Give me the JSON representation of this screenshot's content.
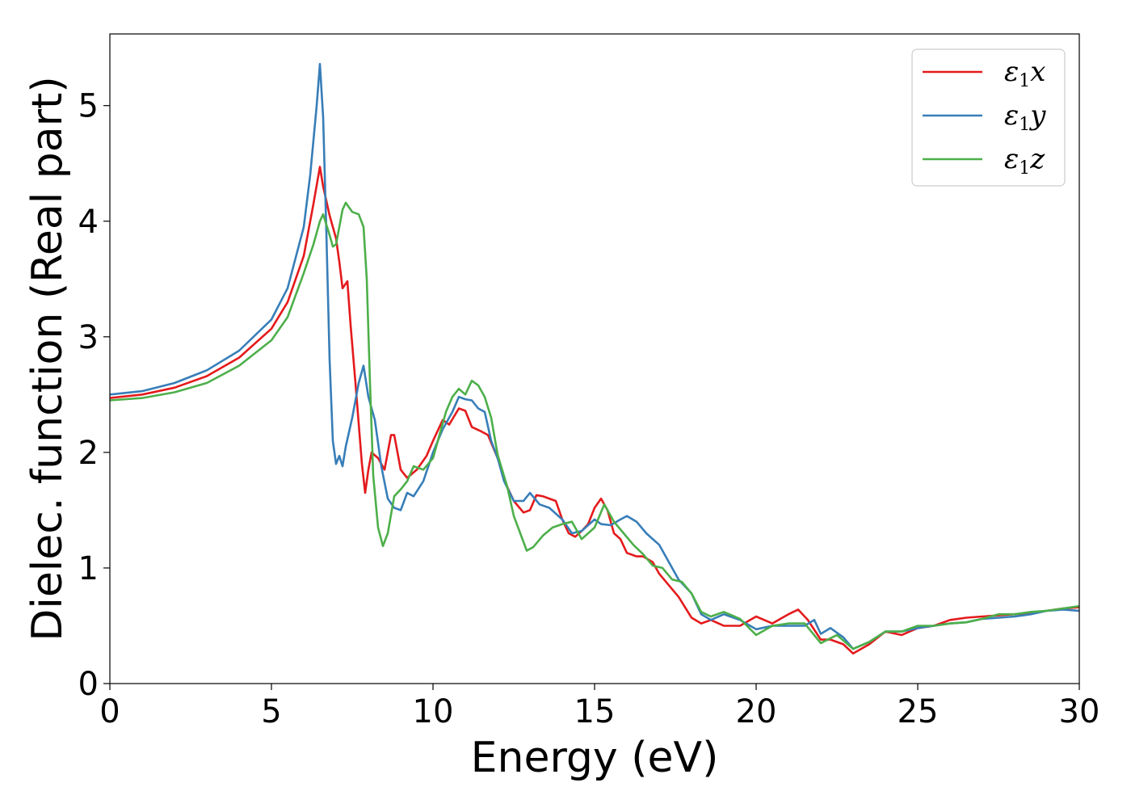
{
  "chart_data": {
    "type": "line",
    "xlabel": "Energy (eV)",
    "ylabel": "Dielec. function (Real part)",
    "xlim": [
      0,
      30
    ],
    "ylim": [
      0,
      5.62
    ],
    "xticks": [
      0,
      5,
      10,
      15,
      20,
      25,
      30
    ],
    "yticks": [
      0,
      1,
      2,
      3,
      4,
      5
    ],
    "grid": false,
    "legend_position": "top-right",
    "series": [
      {
        "name": "ε₁x",
        "legend_main": "ε",
        "legend_sub": "1",
        "legend_var": "x",
        "color": "#e41a1c",
        "x": [
          0,
          1,
          2,
          3,
          4,
          5,
          5.5,
          6,
          6.3,
          6.5,
          6.6,
          6.8,
          7,
          7.1,
          7.2,
          7.35,
          7.45,
          7.6,
          7.8,
          7.9,
          8,
          8.1,
          8.3,
          8.5,
          8.7,
          8.8,
          9,
          9.2,
          9.5,
          9.8,
          10,
          10.3,
          10.5,
          10.8,
          11,
          11.2,
          11.5,
          11.7,
          12,
          12.3,
          12.5,
          12.8,
          13,
          13.2,
          13.4,
          13.6,
          13.8,
          14,
          14.2,
          14.4,
          14.6,
          14.8,
          15,
          15.2,
          15.4,
          15.6,
          15.8,
          16,
          16.3,
          16.5,
          16.8,
          17,
          17.3,
          17.6,
          18,
          18.3,
          18.6,
          19,
          19.5,
          20,
          20.5,
          21,
          21.3,
          21.6,
          22,
          22.3,
          22.7,
          23,
          23.5,
          24,
          24.5,
          25,
          25.5,
          26,
          26.5,
          27,
          27.5,
          28,
          28.5,
          29,
          29.5,
          30
        ],
        "y": [
          2.47,
          2.5,
          2.56,
          2.66,
          2.82,
          3.07,
          3.3,
          3.7,
          4.15,
          4.47,
          4.3,
          4.05,
          3.85,
          3.65,
          3.42,
          3.48,
          3.1,
          2.6,
          1.9,
          1.65,
          1.85,
          2.0,
          1.95,
          1.85,
          2.15,
          2.15,
          1.85,
          1.78,
          1.85,
          1.97,
          2.1,
          2.28,
          2.24,
          2.38,
          2.36,
          2.22,
          2.18,
          2.15,
          1.95,
          1.7,
          1.58,
          1.48,
          1.5,
          1.63,
          1.62,
          1.6,
          1.58,
          1.42,
          1.3,
          1.27,
          1.32,
          1.38,
          1.52,
          1.6,
          1.5,
          1.3,
          1.25,
          1.13,
          1.1,
          1.1,
          1.05,
          0.95,
          0.85,
          0.75,
          0.57,
          0.52,
          0.55,
          0.5,
          0.5,
          0.58,
          0.52,
          0.6,
          0.64,
          0.55,
          0.38,
          0.38,
          0.34,
          0.26,
          0.34,
          0.45,
          0.42,
          0.48,
          0.5,
          0.55,
          0.57,
          0.58,
          0.59,
          0.6,
          0.61,
          0.63,
          0.65,
          0.66
        ]
      },
      {
        "name": "ε₁y",
        "legend_main": "ε",
        "legend_sub": "1",
        "legend_var": "y",
        "color": "#377eb8",
        "x": [
          0,
          1,
          2,
          3,
          4,
          5,
          5.5,
          6,
          6.2,
          6.4,
          6.5,
          6.6,
          6.7,
          6.8,
          6.9,
          7,
          7.1,
          7.2,
          7.3,
          7.5,
          7.7,
          7.85,
          8,
          8.2,
          8.4,
          8.6,
          8.8,
          9,
          9.2,
          9.4,
          9.7,
          10,
          10.3,
          10.6,
          10.8,
          11,
          11.2,
          11.4,
          11.6,
          11.8,
          12,
          12.2,
          12.5,
          12.8,
          13,
          13.3,
          13.6,
          14,
          14.3,
          14.6,
          15,
          15.2,
          15.5,
          15.8,
          16,
          16.3,
          16.6,
          17,
          17.3,
          17.6,
          18,
          18.3,
          18.6,
          19,
          19.5,
          20,
          20.5,
          21,
          21.5,
          21.8,
          22,
          22.3,
          22.7,
          23,
          23.5,
          24,
          24.5,
          25,
          25.5,
          26,
          26.5,
          27,
          27.5,
          28,
          28.5,
          29,
          29.5,
          30
        ],
        "y": [
          2.5,
          2.53,
          2.6,
          2.71,
          2.88,
          3.15,
          3.42,
          3.95,
          4.4,
          5.0,
          5.36,
          4.9,
          3.9,
          2.8,
          2.1,
          1.9,
          1.97,
          1.88,
          2.05,
          2.3,
          2.6,
          2.75,
          2.48,
          2.28,
          1.88,
          1.6,
          1.52,
          1.5,
          1.65,
          1.62,
          1.75,
          2.0,
          2.2,
          2.35,
          2.48,
          2.46,
          2.45,
          2.38,
          2.35,
          2.1,
          1.95,
          1.75,
          1.58,
          1.58,
          1.65,
          1.55,
          1.52,
          1.42,
          1.3,
          1.32,
          1.42,
          1.38,
          1.37,
          1.42,
          1.45,
          1.4,
          1.3,
          1.2,
          1.05,
          0.9,
          0.78,
          0.6,
          0.55,
          0.6,
          0.55,
          0.47,
          0.5,
          0.5,
          0.5,
          0.55,
          0.43,
          0.48,
          0.4,
          0.3,
          0.36,
          0.45,
          0.45,
          0.48,
          0.5,
          0.52,
          0.53,
          0.56,
          0.57,
          0.58,
          0.6,
          0.63,
          0.64,
          0.63
        ]
      },
      {
        "name": "ε₁z",
        "legend_main": "ε",
        "legend_sub": "1",
        "legend_var": "z",
        "color": "#4daf4a",
        "x": [
          0,
          1,
          2,
          3,
          4,
          5,
          5.5,
          6,
          6.3,
          6.5,
          6.6,
          6.8,
          6.9,
          7,
          7.1,
          7.2,
          7.3,
          7.5,
          7.7,
          7.85,
          7.95,
          8.05,
          8.15,
          8.3,
          8.45,
          8.6,
          8.8,
          9,
          9.2,
          9.4,
          9.7,
          10,
          10.2,
          10.4,
          10.6,
          10.8,
          11,
          11.2,
          11.4,
          11.6,
          11.8,
          12,
          12.3,
          12.5,
          12.7,
          12.9,
          13.1,
          13.4,
          13.7,
          14,
          14.3,
          14.6,
          15,
          15.3,
          15.6,
          15.9,
          16.2,
          16.5,
          16.8,
          17.1,
          17.4,
          17.7,
          18,
          18.3,
          18.6,
          19,
          19.5,
          20,
          20.5,
          21,
          21.5,
          22,
          22.5,
          23,
          23.5,
          24,
          24.5,
          25,
          25.5,
          26,
          26.5,
          27,
          27.5,
          28,
          28.5,
          29,
          29.5,
          30
        ],
        "y": [
          2.45,
          2.47,
          2.52,
          2.6,
          2.75,
          2.97,
          3.17,
          3.55,
          3.8,
          4.0,
          4.06,
          3.88,
          3.78,
          3.8,
          3.95,
          4.1,
          4.16,
          4.08,
          4.06,
          3.95,
          3.5,
          2.6,
          1.8,
          1.35,
          1.19,
          1.3,
          1.62,
          1.68,
          1.75,
          1.88,
          1.85,
          1.95,
          2.15,
          2.35,
          2.48,
          2.55,
          2.5,
          2.62,
          2.58,
          2.48,
          2.3,
          1.98,
          1.7,
          1.45,
          1.3,
          1.15,
          1.18,
          1.28,
          1.35,
          1.38,
          1.4,
          1.25,
          1.35,
          1.55,
          1.4,
          1.3,
          1.2,
          1.12,
          1.02,
          1.0,
          0.9,
          0.88,
          0.78,
          0.62,
          0.58,
          0.62,
          0.56,
          0.42,
          0.5,
          0.52,
          0.52,
          0.35,
          0.42,
          0.3,
          0.36,
          0.45,
          0.45,
          0.5,
          0.5,
          0.52,
          0.53,
          0.56,
          0.6,
          0.6,
          0.62,
          0.63,
          0.65,
          0.67
        ]
      }
    ]
  }
}
